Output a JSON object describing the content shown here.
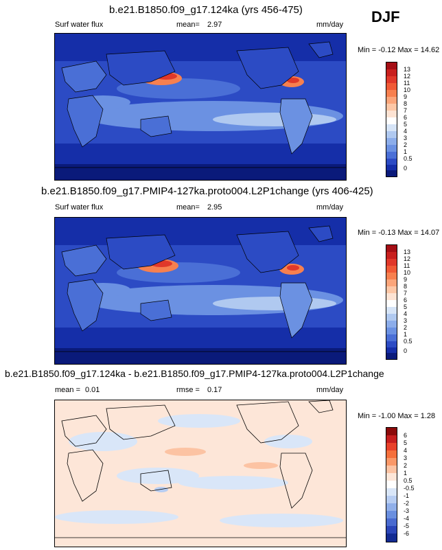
{
  "season": "DJF",
  "panels": [
    {
      "title": "b.e21.B1850.f09_g17.124ka (yrs 456-475)",
      "left_label": "Surf water flux",
      "mean_label": "mean=",
      "mean_value": "2.97",
      "units": "mm/day",
      "minmax": "Min = -0.12 Max = 14.62",
      "colorbar_labels": [
        "13",
        "12",
        "11",
        "10",
        "9",
        "8",
        "7",
        "6",
        "5",
        "4",
        "3",
        "2",
        "1",
        "0.5",
        "0"
      ]
    },
    {
      "title": "b.e21.B1850.f09_g17.PMIP4-127ka.proto004.L2P1change (yrs 406-425)",
      "left_label": "Surf water flux",
      "mean_label": "mean=",
      "mean_value": "2.95",
      "units": "mm/day",
      "minmax": "Min = -0.13 Max = 14.07",
      "colorbar_labels": [
        "13",
        "12",
        "11",
        "10",
        "9",
        "8",
        "7",
        "6",
        "5",
        "4",
        "3",
        "2",
        "1",
        "0.5",
        "0"
      ]
    },
    {
      "title": "b.e21.B1850.f09_g17.124ka - b.e21.B1850.f09_g17.PMIP4-127ka.proto004.L2P1change",
      "left_label": "mean =",
      "left_value": "0.01",
      "mean_label": "rmse =",
      "mean_value": "0.17",
      "units": "mm/day",
      "minmax": "Min = -1.00 Max = 1.28",
      "colorbar_labels": [
        "6",
        "5",
        "4",
        "3",
        "2",
        "1",
        "0.5",
        "-0.5",
        "-1",
        "-2",
        "-3",
        "-4",
        "-5",
        "-6"
      ]
    }
  ],
  "colors": {
    "seq": [
      "#a50f15",
      "#c8201e",
      "#e0382a",
      "#f05a36",
      "#f7804f",
      "#fba57a",
      "#fdc7a6",
      "#fde3d3",
      "#ffffff",
      "#d6e4f7",
      "#b0c9f0",
      "#8cadea",
      "#6b91e2",
      "#4a6fd6",
      "#2c4bc4",
      "#152ea8",
      "#0a1a7a"
    ],
    "div": [
      "#8b0a0a",
      "#c61e1e",
      "#e8412a",
      "#f5703c",
      "#fa9868",
      "#fcc3a3",
      "#fde6d8",
      "#ffffff",
      "#d9e6f8",
      "#b7cdf2",
      "#90afe9",
      "#6a8fdf",
      "#4a6bd0",
      "#2b46b8",
      "#132b92"
    ]
  }
}
